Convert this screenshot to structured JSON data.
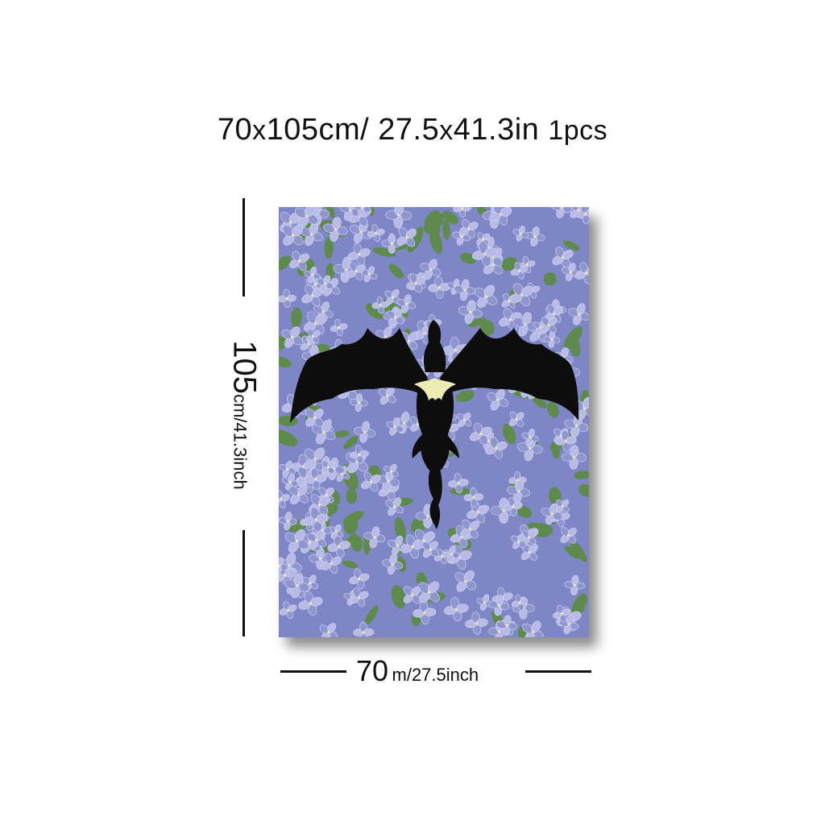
{
  "headline": {
    "width_cm": "70",
    "x1": "x",
    "height_cm": "105cm/",
    "width_in": "27.5",
    "x2": "x",
    "height_in": "41.3in",
    "quantity": "1pcs"
  },
  "dimensions": {
    "height_value": "105",
    "height_unit": "cm/41.3inch",
    "width_value": "70",
    "width_unit": "m/27.5inch"
  },
  "artwork": {
    "subject": "dragon-silhouette-on-flowers",
    "colors": {
      "background": "#8f95cf",
      "leaf": "#5f8a4e",
      "petal_light": "#b7bbe6",
      "silhouette": "#0d0d0d",
      "accent": "#ecebb4"
    }
  }
}
